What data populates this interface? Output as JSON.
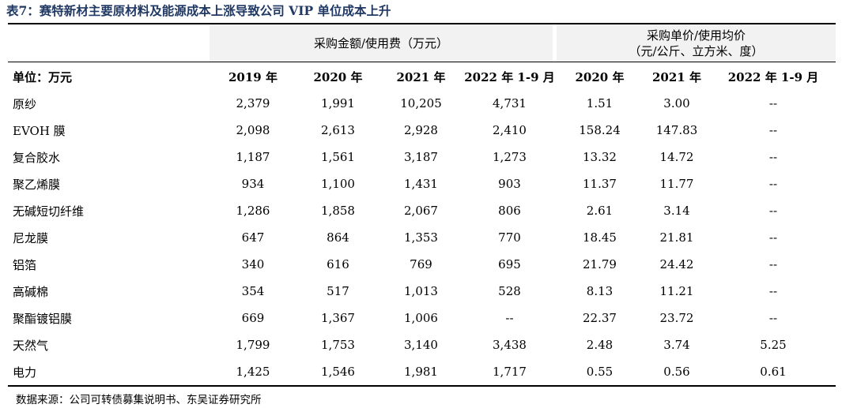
{
  "title": "表7：赛特新材主要原材料及能源成本上涨导致公司 VIP 单位成本上升",
  "group_headers": {
    "purchase_amount": "采购金额/使用费（万元）",
    "unit_price_line1": "采购单价/使用均价",
    "unit_price_line2": "（元/公斤、立方米、度）"
  },
  "column_header": {
    "unit_label": "单位：万元",
    "amount_years": [
      "2019 年",
      "2020 年",
      "2021 年",
      "2022 年 1-9 月"
    ],
    "price_years": [
      "2020 年",
      "2021 年",
      "2022 年 1-9 月"
    ]
  },
  "rows": [
    {
      "name": "原纱",
      "amounts": [
        "2,379",
        "1,991",
        "10,205",
        "4,731"
      ],
      "prices": [
        "1.51",
        "3.00",
        "--"
      ]
    },
    {
      "name": "EVOH 膜",
      "amounts": [
        "2,098",
        "2,613",
        "2,928",
        "2,410"
      ],
      "prices": [
        "158.24",
        "147.83",
        "--"
      ]
    },
    {
      "name": "复合胶水",
      "amounts": [
        "1,187",
        "1,561",
        "3,187",
        "1,273"
      ],
      "prices": [
        "13.32",
        "14.72",
        "--"
      ]
    },
    {
      "name": "聚乙烯膜",
      "amounts": [
        "934",
        "1,100",
        "1,431",
        "903"
      ],
      "prices": [
        "11.37",
        "11.77",
        "--"
      ]
    },
    {
      "name": "无碱短切纤维",
      "amounts": [
        "1,286",
        "1,858",
        "2,067",
        "806"
      ],
      "prices": [
        "2.61",
        "3.14",
        "--"
      ]
    },
    {
      "name": "尼龙膜",
      "amounts": [
        "647",
        "864",
        "1,353",
        "770"
      ],
      "prices": [
        "18.45",
        "21.81",
        "--"
      ]
    },
    {
      "name": "铝箔",
      "amounts": [
        "340",
        "616",
        "769",
        "695"
      ],
      "prices": [
        "21.79",
        "24.42",
        "--"
      ]
    },
    {
      "name": "高碱棉",
      "amounts": [
        "354",
        "517",
        "1,013",
        "528"
      ],
      "prices": [
        "8.13",
        "11.21",
        "--"
      ]
    },
    {
      "name": "聚酯镀铝膜",
      "amounts": [
        "669",
        "1,367",
        "1,006",
        "--"
      ],
      "prices": [
        "22.37",
        "23.72",
        "--"
      ]
    },
    {
      "name": "天然气",
      "amounts": [
        "1,799",
        "1,753",
        "3,140",
        "3,438"
      ],
      "prices": [
        "2.48",
        "3.74",
        "5.25"
      ]
    },
    {
      "name": "电力",
      "amounts": [
        "1,425",
        "1,546",
        "1,981",
        "1,717"
      ],
      "prices": [
        "0.55",
        "0.56",
        "0.61"
      ]
    }
  ],
  "source": "数据来源：公司可转债募集说明书、东吴证券研究所",
  "colors": {
    "title": "#1f3864",
    "header_fill": "#f2f2f2"
  }
}
